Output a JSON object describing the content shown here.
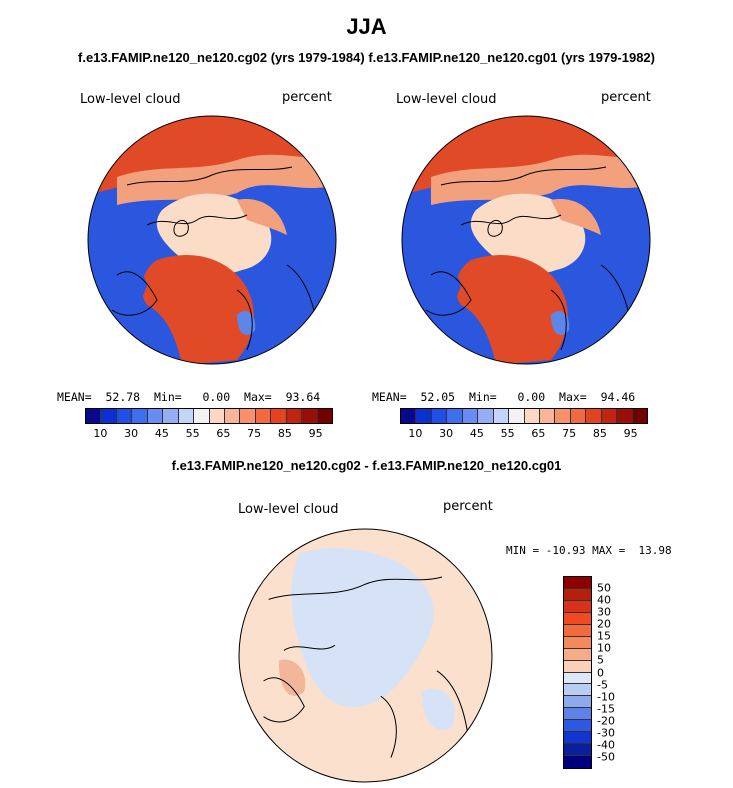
{
  "figure": {
    "title": "JJA",
    "run_titles": {
      "left": "f.e13.FAMIP.ne120_ne120.cg02 (yrs 1979-1984)",
      "right": "f.e13.FAMIP.ne120_ne120.cg01 (yrs 1979-1982)"
    },
    "diff_title": "f.e13.FAMIP.ne120_ne120.cg02 - f.e13.FAMIP.ne120_ne120.cg01"
  },
  "map_left": {
    "variable": "Low-level cloud",
    "units": "percent",
    "mean_label": "MEAN=",
    "mean": "52.78",
    "min_label": "Min=",
    "min": "0.00",
    "max_label": "Max=",
    "max": "93.64"
  },
  "map_right": {
    "variable": "Low-level cloud",
    "units": "percent",
    "mean_label": "MEAN=",
    "mean": "52.05",
    "min_label": "Min=",
    "min": "0.00",
    "max_label": "Max=",
    "max": "94.46"
  },
  "map_diff": {
    "variable": "Low-level cloud",
    "units": "percent",
    "minmax": "MIN = -10.93 MAX =  13.98"
  },
  "colorbar_main": {
    "tick_labels": [
      "10",
      "30",
      "45",
      "55",
      "65",
      "75",
      "85",
      "95"
    ],
    "colors": [
      "#08088e",
      "#0c2fd0",
      "#1f4fe6",
      "#3f6df0",
      "#6a8cf2",
      "#94aef3",
      "#c4d4f6",
      "#f2f2f2",
      "#fcd7c2",
      "#f9b598",
      "#f7906b",
      "#f2683f",
      "#e4431f",
      "#c22412",
      "#9b0d08",
      "#720000"
    ]
  },
  "colorbar_diff": {
    "tick_labels": [
      "50",
      "40",
      "30",
      "20",
      "15",
      "10",
      "5",
      "0",
      "-5",
      "-10",
      "-15",
      "-20",
      "-30",
      "-40",
      "-50"
    ],
    "colors": [
      "#8b0000",
      "#b3200c",
      "#d6331a",
      "#ef4a22",
      "#f26b3c",
      "#f48a5c",
      "#f6ac88",
      "#fad1b8",
      "#dce8f8",
      "#b9cdf4",
      "#8eaaef",
      "#5d82ea",
      "#2f58e2",
      "#1036cf",
      "#0a1f9c",
      "#00007f"
    ]
  },
  "map_colors": {
    "ocean_high": "#e14a26",
    "ocean_mid": "#f3a07c",
    "ice": "#fbdcc6",
    "land_low": "#2b57df",
    "land_mid": "#5d86ea",
    "diff_pos": "#fbe0cd",
    "diff_neg": "#d6e3f7"
  }
}
